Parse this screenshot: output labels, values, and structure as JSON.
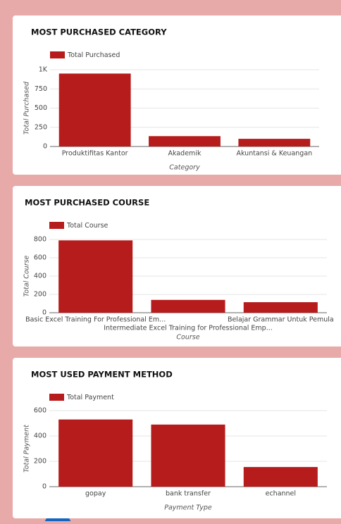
{
  "chart_data": [
    {
      "type": "bar",
      "title": "MOST PURCHASED CATEGORY",
      "categories": [
        "Produktifitas Kantor",
        "Akademik",
        "Akuntansi & Keuangan"
      ],
      "series": [
        {
          "name": "Total Purchased",
          "color": "#b71c1c",
          "values": [
            950,
            135,
            100
          ]
        }
      ],
      "ylabel": "Total Purchased",
      "xlabel": "Category",
      "ylim": [
        0,
        1000
      ],
      "yticks": [
        0,
        250,
        500,
        750,
        {
          "value": 1000,
          "label": "1K"
        }
      ],
      "grid": true,
      "legend": "top-left"
    },
    {
      "type": "bar",
      "title": "MOST PURCHASED COURSE",
      "categories": [
        "Basic Excel Training For Professional Em...",
        "Intermediate Excel Training for Professional Emp...",
        "Belajar Grammar Untuk Pemula"
      ],
      "series": [
        {
          "name": "Total Course",
          "color": "#b71c1c",
          "values": [
            790,
            140,
            115
          ]
        }
      ],
      "ylabel": "Total Course",
      "xlabel": "Course",
      "ylim": [
        0,
        800
      ],
      "yticks": [
        0,
        200,
        400,
        600,
        800
      ],
      "grid": true,
      "legend": "top-left"
    },
    {
      "type": "bar",
      "title": "MOST USED PAYMENT METHOD",
      "categories": [
        "gopay",
        "bank transfer",
        "echannel"
      ],
      "series": [
        {
          "name": "Total Payment",
          "color": "#b71c1c",
          "values": [
            530,
            490,
            155
          ]
        }
      ],
      "ylabel": "Total Payment",
      "xlabel": "Payment Type",
      "ylim": [
        0,
        600
      ],
      "yticks": [
        0,
        200,
        400,
        600
      ],
      "grid": true,
      "legend": "top-left"
    }
  ]
}
